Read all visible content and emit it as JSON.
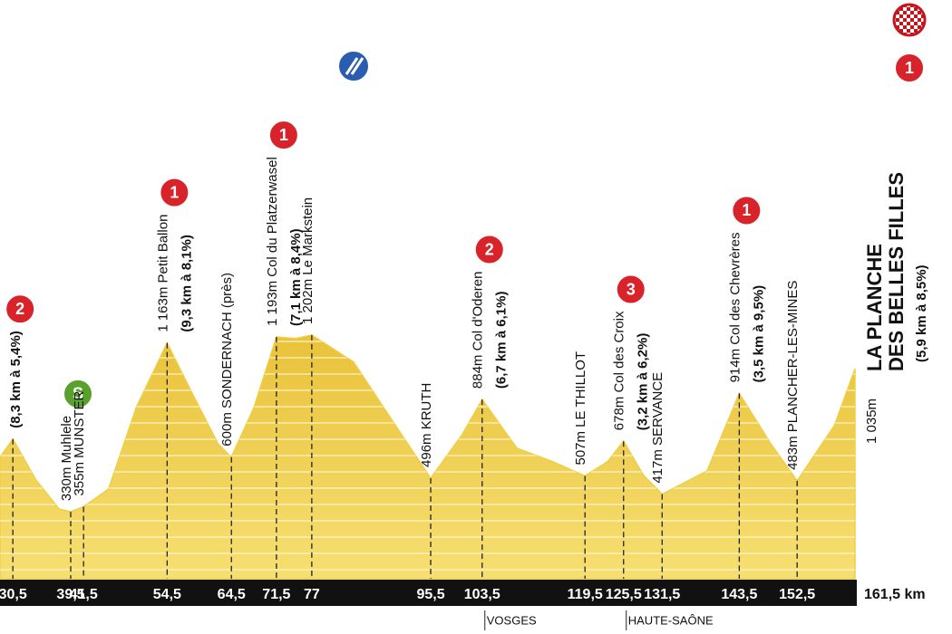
{
  "chart_data": {
    "type": "area",
    "color": "#efcd45",
    "x": [
      28.5,
      30.5,
      34.1,
      37.7,
      39.5,
      41.5,
      45.4,
      49.7,
      54.5,
      58.8,
      62.4,
      64.5,
      68.0,
      71.5,
      74.5,
      77,
      83.5,
      89.1,
      95.5,
      100.4,
      103.5,
      108.9,
      114.5,
      119.5,
      123,
      125.5,
      128.6,
      131.5,
      138.5,
      143.5,
      148.4,
      152.5,
      158.3,
      161.5
    ],
    "values": [
      599,
      689,
      487,
      344,
      330,
      355,
      443,
      845,
      1163,
      890,
      666,
      600,
      845,
      1193,
      1185,
      1202,
      1069,
      800,
      496,
      711,
      884,
      644,
      577,
      507,
      577,
      678,
      510,
      417,
      532,
      914,
      666,
      483,
      756,
      1035
    ],
    "xlim": [
      28.5,
      161.5
    ],
    "ylim": [
      0,
      1300
    ],
    "xticks": [
      {
        "value": 30.5,
        "label": "30,5"
      },
      {
        "value": 39.5,
        "label": "39,5"
      },
      {
        "value": 41.5,
        "label": "41,5"
      },
      {
        "value": 54.5,
        "label": "54,5"
      },
      {
        "value": 64.5,
        "label": "64,5"
      },
      {
        "value": 71.5,
        "label": "71,5"
      },
      77,
      {
        "value": 95.5,
        "label": "95,5"
      },
      {
        "value": 103.5,
        "label": "103,5"
      },
      {
        "value": 119.5,
        "label": "119,5"
      },
      {
        "value": 125.5,
        "label": "125,5"
      },
      {
        "value": 131.5,
        "label": "131,5"
      },
      {
        "value": 143.5,
        "label": "143,5"
      },
      {
        "value": 152.5,
        "label": "152,5"
      },
      {
        "value": 161.5,
        "label": "161,5 km"
      }
    ],
    "annotations": [
      {
        "x": 30.5,
        "detail": "(8,3 km à 5,4%)",
        "category": "2",
        "marker_color": "#d8232a"
      },
      {
        "x": 39.5,
        "text": "330m Muhlele",
        "category": "S",
        "marker_color": "#5aa02c"
      },
      {
        "x": 41.5,
        "text": "355m MUNSTER"
      },
      {
        "x": 54.5,
        "text": "1 163m Petit Ballon",
        "detail": "(9,3 km à 8,1%)",
        "category": "1",
        "marker_color": "#d8232a"
      },
      {
        "x": 64.5,
        "text": "600m SONDERNACH (près)"
      },
      {
        "x": 71.5,
        "text": "1 193m Col du Platzerwasel",
        "detail": "(7,1 km à 8,4%)",
        "category": "1",
        "marker_color": "#d8232a"
      },
      {
        "x": 77,
        "text": "1 202m Le Markstein"
      },
      {
        "x": 95.5,
        "text": "496m KRUTH"
      },
      {
        "x": 103.5,
        "text": "884m Col d'Oderen",
        "detail": "(6,7 km à 6,1%)",
        "category": "2",
        "marker_color": "#d8232a"
      },
      {
        "x": 119.5,
        "text": "507m LE THILLOT"
      },
      {
        "x": 125.5,
        "text": "678m Col des Croix",
        "detail": "(3,2 km à 6,2%)",
        "category": "3",
        "marker_color": "#d8232a"
      },
      {
        "x": 131.5,
        "text": "417m SERVANCE"
      },
      {
        "x": 143.5,
        "text": "914m Col des Chevrères",
        "detail": "(3,5 km à 9,5%)",
        "category": "1",
        "marker_color": "#d8232a"
      },
      {
        "x": 152.5,
        "text": "483m PLANCHER-LES-MINES"
      }
    ],
    "finish": {
      "elevation": "1 035m",
      "name_lines": [
        "LA PLANCHE",
        "DES BELLES FILLES"
      ],
      "detail": "(5,9 km à 8,5%)",
      "category": "1",
      "marker_color": "#d8232a"
    },
    "regions": [
      {
        "x": 103.5,
        "label": "VOSGES"
      },
      {
        "x": 125.5,
        "label": "HAUTE-SAÔNE"
      }
    ]
  }
}
